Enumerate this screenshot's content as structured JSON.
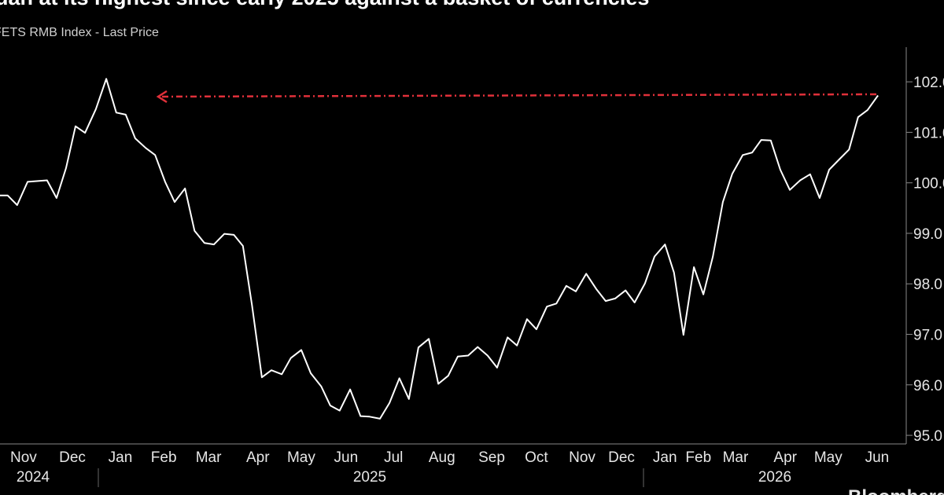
{
  "chart_data": {
    "type": "line",
    "title": "uan at its highest since early 2025 against a basket of currencies",
    "subtitle": "FETS RMB Index - Last Price",
    "source": "Bloomberg",
    "year_labels": [
      "2024",
      "2025",
      "2026"
    ],
    "x": [
      0,
      0.17,
      0.38,
      0.61,
      1.04,
      1.25,
      1.46,
      1.67,
      1.88,
      2.12,
      2.35,
      2.57,
      2.78,
      2.99,
      3.22,
      3.43,
      3.65,
      3.86,
      4.09,
      4.3,
      4.52,
      4.73,
      4.96,
      5.17,
      5.37,
      5.57,
      5.79,
      6.0,
      6.23,
      6.43,
      6.66,
      6.87,
      7.1,
      7.3,
      7.51,
      7.74,
      7.97,
      8.17,
      8.4,
      8.61,
      8.83,
      9.04,
      9.25,
      9.48,
      9.69,
      9.91,
      10.12,
      10.35,
      10.56,
      10.78,
      10.99,
      11.22,
      11.43,
      11.65,
      11.86,
      12.09,
      12.3,
      12.52,
      12.73,
      12.96,
      13.18,
      13.39,
      13.6,
      13.83,
      14.03,
      14.26,
      14.47,
      14.7,
      14.9,
      15.11,
      15.34,
      15.55,
      15.76,
      15.98,
      16.19,
      16.42,
      16.63,
      16.83,
      17.04,
      17.25,
      17.46,
      17.69,
      17.91,
      18.12,
      18.33,
      18.56,
      18.77,
      18.97,
      19.18,
      19.41
    ],
    "series": [
      {
        "name": "CFETS RMB Index",
        "color": "#ffffff",
        "values": [
          99.75,
          99.75,
          99.56,
          100.02,
          100.05,
          99.7,
          100.29,
          101.12,
          100.99,
          101.46,
          102.06,
          101.39,
          101.35,
          100.88,
          100.69,
          100.55,
          100.02,
          99.62,
          99.89,
          99.05,
          98.81,
          98.78,
          98.99,
          98.97,
          98.75,
          97.58,
          96.15,
          96.29,
          96.21,
          96.53,
          96.69,
          96.23,
          95.97,
          95.59,
          95.49,
          95.91,
          95.38,
          95.37,
          95.33,
          95.64,
          96.13,
          95.72,
          96.74,
          96.91,
          96.02,
          96.18,
          96.56,
          96.58,
          96.75,
          96.58,
          96.34,
          96.94,
          96.78,
          97.3,
          97.1,
          97.55,
          97.61,
          97.96,
          97.85,
          98.2,
          97.9,
          97.66,
          97.71,
          97.87,
          97.63,
          98.01,
          98.54,
          98.78,
          98.22,
          96.99,
          98.33,
          97.79,
          98.54,
          99.62,
          100.18,
          100.55,
          100.6,
          100.85,
          100.84,
          100.26,
          99.86,
          100.05,
          100.17,
          99.7,
          100.26,
          100.47,
          100.66,
          101.3,
          101.44,
          101.73
        ]
      }
    ],
    "xlim": [
      0,
      20
    ],
    "xticks": [
      {
        "value": 0.52,
        "label": "Nov"
      },
      {
        "value": 1.6,
        "label": "Dec"
      },
      {
        "value": 2.66,
        "label": "Jan"
      },
      {
        "value": 3.62,
        "label": "Feb"
      },
      {
        "value": 4.61,
        "label": "Mar"
      },
      {
        "value": 5.7,
        "label": "Apr"
      },
      {
        "value": 6.66,
        "label": "May"
      },
      {
        "value": 7.65,
        "label": "Jun"
      },
      {
        "value": 8.7,
        "label": "Jul"
      },
      {
        "value": 9.77,
        "label": "Aug"
      },
      {
        "value": 10.87,
        "label": "Sep"
      },
      {
        "value": 11.86,
        "label": "Oct"
      },
      {
        "value": 12.87,
        "label": "Nov"
      },
      {
        "value": 13.74,
        "label": "Dec"
      },
      {
        "value": 14.7,
        "label": "Jan"
      },
      {
        "value": 15.44,
        "label": "Feb"
      },
      {
        "value": 16.26,
        "label": "Mar"
      },
      {
        "value": 17.36,
        "label": "Apr"
      },
      {
        "value": 18.31,
        "label": "May"
      },
      {
        "value": 19.39,
        "label": "Jun"
      }
    ],
    "ylim": [
      94.83,
      102.5
    ],
    "yticks": [
      {
        "value": 95,
        "label": "95.0"
      },
      {
        "value": 96,
        "label": "96.0"
      },
      {
        "value": 97,
        "label": "97.0"
      },
      {
        "value": 98,
        "label": "98.0"
      },
      {
        "value": 99,
        "label": "99.0"
      },
      {
        "value": 100,
        "label": "100.0"
      },
      {
        "value": 101,
        "label": "101.0"
      },
      {
        "value": 102,
        "label": "102.0"
      }
    ],
    "grid": false
  }
}
